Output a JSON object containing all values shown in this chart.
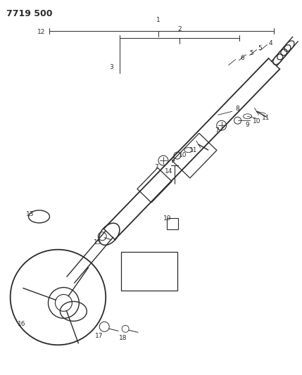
{
  "title": "7719 500",
  "bg_color": "#ffffff",
  "lc": "#2a2a2a",
  "tc": "#2a2a2a",
  "figsize": [
    4.29,
    5.33
  ],
  "dpi": 100
}
